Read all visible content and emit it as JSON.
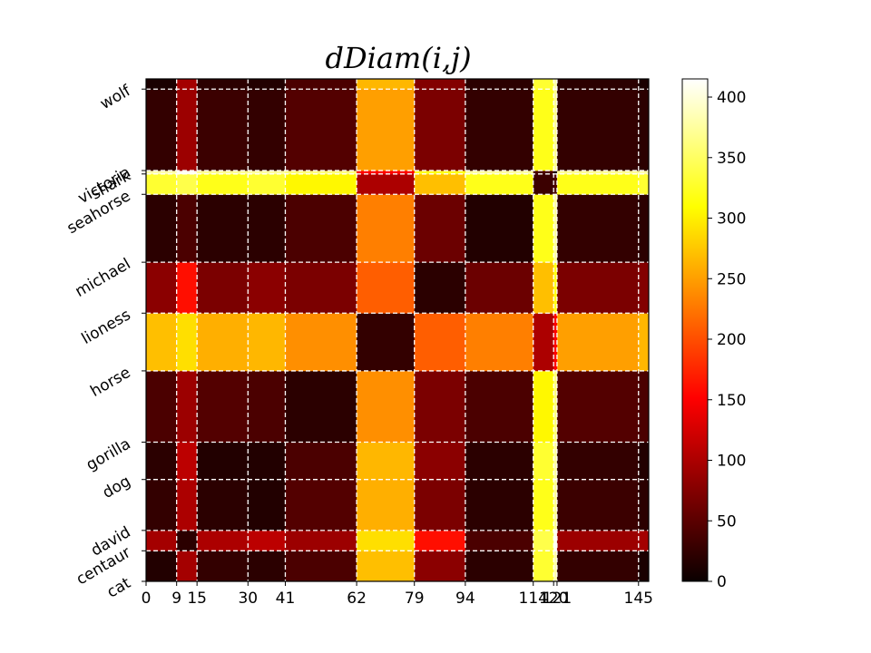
{
  "chart_data": {
    "type": "heatmap",
    "title": "dDiam(i,j)",
    "x_ticks": [
      0,
      9,
      15,
      30,
      41,
      62,
      79,
      94,
      114,
      120,
      121,
      145
    ],
    "x_tick_labels": [
      "0",
      "9",
      "15",
      "30",
      "41",
      "62",
      "79",
      "94",
      "114",
      "120",
      "121",
      "145"
    ],
    "n": 148,
    "y_ticks": [
      {
        "label": "wolf",
        "start": 145
      },
      {
        "label": "victoria",
        "start": 121
      },
      {
        "label": "shark",
        "start": 120
      },
      {
        "label": "seahorse",
        "start": 114
      },
      {
        "label": "michael",
        "start": 94
      },
      {
        "label": "lioness",
        "start": 79
      },
      {
        "label": "horse",
        "start": 62
      },
      {
        "label": "gorilla",
        "start": 41
      },
      {
        "label": "dog",
        "start": 30
      },
      {
        "label": "david",
        "start": 15
      },
      {
        "label": "centaur",
        "start": 9
      },
      {
        "label": "cat",
        "start": 0
      }
    ],
    "groups": [
      "cat",
      "centaur",
      "david",
      "dog",
      "gorilla",
      "horse",
      "lioness",
      "michael",
      "seahorse",
      "shark",
      "victoria",
      "wolf"
    ],
    "group_starts": [
      0,
      9,
      15,
      30,
      41,
      62,
      79,
      94,
      114,
      120,
      121,
      145
    ],
    "group_ends": [
      9,
      15,
      30,
      41,
      62,
      79,
      94,
      114,
      120,
      121,
      145,
      148
    ],
    "block_matrix": [
      [
        15,
        95,
        25,
        20,
        40,
        270,
        80,
        20,
        330,
        380,
        25,
        10
      ],
      [
        95,
        20,
        100,
        110,
        90,
        290,
        160,
        40,
        340,
        410,
        90,
        95
      ],
      [
        25,
        100,
        20,
        15,
        45,
        260,
        70,
        20,
        320,
        370,
        30,
        20
      ],
      [
        20,
        110,
        15,
        15,
        40,
        265,
        80,
        20,
        330,
        375,
        25,
        15
      ],
      [
        40,
        90,
        45,
        40,
        20,
        240,
        70,
        40,
        305,
        360,
        45,
        40
      ],
      [
        270,
        290,
        260,
        265,
        240,
        25,
        210,
        230,
        100,
        150,
        250,
        265
      ],
      [
        80,
        160,
        70,
        80,
        70,
        210,
        20,
        60,
        270,
        320,
        70,
        75
      ],
      [
        20,
        40,
        20,
        20,
        40,
        230,
        60,
        15,
        320,
        375,
        25,
        20
      ],
      [
        330,
        340,
        320,
        330,
        305,
        100,
        270,
        320,
        30,
        40,
        320,
        330
      ],
      [
        380,
        410,
        370,
        375,
        360,
        150,
        320,
        375,
        40,
        10,
        370,
        380
      ],
      [
        25,
        90,
        30,
        25,
        45,
        250,
        70,
        25,
        320,
        370,
        25,
        20
      ],
      [
        10,
        95,
        20,
        15,
        40,
        265,
        75,
        20,
        330,
        380,
        20,
        10
      ]
    ],
    "colorbar": {
      "colormap": "hot",
      "vmin": 0,
      "vmax": 415,
      "ticks": [
        0,
        50,
        100,
        150,
        200,
        250,
        300,
        350,
        400
      ],
      "tick_labels": [
        "0",
        "50",
        "100",
        "150",
        "200",
        "250",
        "300",
        "350",
        "400"
      ]
    }
  }
}
